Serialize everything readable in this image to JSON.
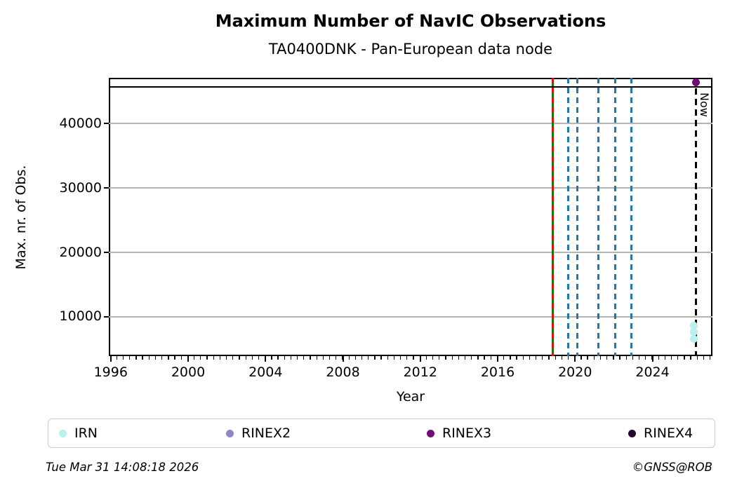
{
  "header": {
    "title": "Maximum Number of NavIC Observations",
    "subtitle": "TA0400DNK - Pan-European data node"
  },
  "footer": {
    "timestamp": "Tue Mar 31 14:08:18 2026",
    "credit": "©GNSS@ROB"
  },
  "legend": {
    "items": [
      {
        "label": "IRN",
        "color": "#b9efec"
      },
      {
        "label": "RINEX2",
        "color": "#8d87c9"
      },
      {
        "label": "RINEX3",
        "color": "#6e0d72"
      },
      {
        "label": "RINEX4",
        "color": "#26092f"
      }
    ]
  },
  "chart_data": {
    "type": "scatter",
    "title": "Maximum Number of NavIC Observations",
    "subtitle": "TA0400DNK - Pan-European data node",
    "xlabel": "Year",
    "ylabel": "Max. nr. of Obs.",
    "xlim": [
      1995.9,
      2027.1
    ],
    "ylim": [
      3900,
      47100
    ],
    "xticks": [
      1996,
      2000,
      2004,
      2008,
      2012,
      2016,
      2020,
      2024
    ],
    "yticks": [
      10000,
      20000,
      30000,
      40000
    ],
    "x_minor_step": 0.33333,
    "grid": "horizontal",
    "grid_color": "#b4b4b4",
    "series": [
      {
        "name": "IRN",
        "color": "#b9efec",
        "points": [
          {
            "x": 2026.15,
            "y": 8600
          },
          {
            "x": 2026.15,
            "y": 7700
          },
          {
            "x": 2026.15,
            "y": 6600
          }
        ]
      },
      {
        "name": "RINEX2",
        "color": "#8d87c9",
        "points": []
      },
      {
        "name": "RINEX3",
        "color": "#6e0d72",
        "points": [
          {
            "x": 2026.25,
            "y": 46400
          }
        ]
      },
      {
        "name": "RINEX4",
        "color": "#26092f",
        "points": []
      }
    ],
    "max_line": {
      "y": 45700,
      "color": "#000000",
      "style": "solid"
    },
    "event_lines": [
      {
        "x": 2018.85,
        "color": "#008000",
        "style": "solid",
        "name": "event-line-green"
      },
      {
        "x": 2018.85,
        "color": "#dd1111",
        "style": "dashed",
        "name": "event-line-red-overlay"
      },
      {
        "x": 2019.65,
        "color": "#1f77b4",
        "style": "dashed",
        "name": "event-line-blue-1"
      },
      {
        "x": 2020.12,
        "color": "#1f77b4",
        "style": "dashed",
        "name": "event-line-blue-2"
      },
      {
        "x": 2021.2,
        "color": "#1f77b4",
        "style": "dashed",
        "name": "event-line-blue-3"
      },
      {
        "x": 2022.08,
        "color": "#1f77b4",
        "style": "dashed",
        "name": "event-line-blue-4"
      },
      {
        "x": 2022.9,
        "color": "#1f77b4",
        "style": "dashed",
        "name": "event-line-blue-5"
      }
    ],
    "now_line": {
      "x": 2026.25,
      "label": "Now",
      "color": "#000000",
      "style": "dashed"
    }
  }
}
